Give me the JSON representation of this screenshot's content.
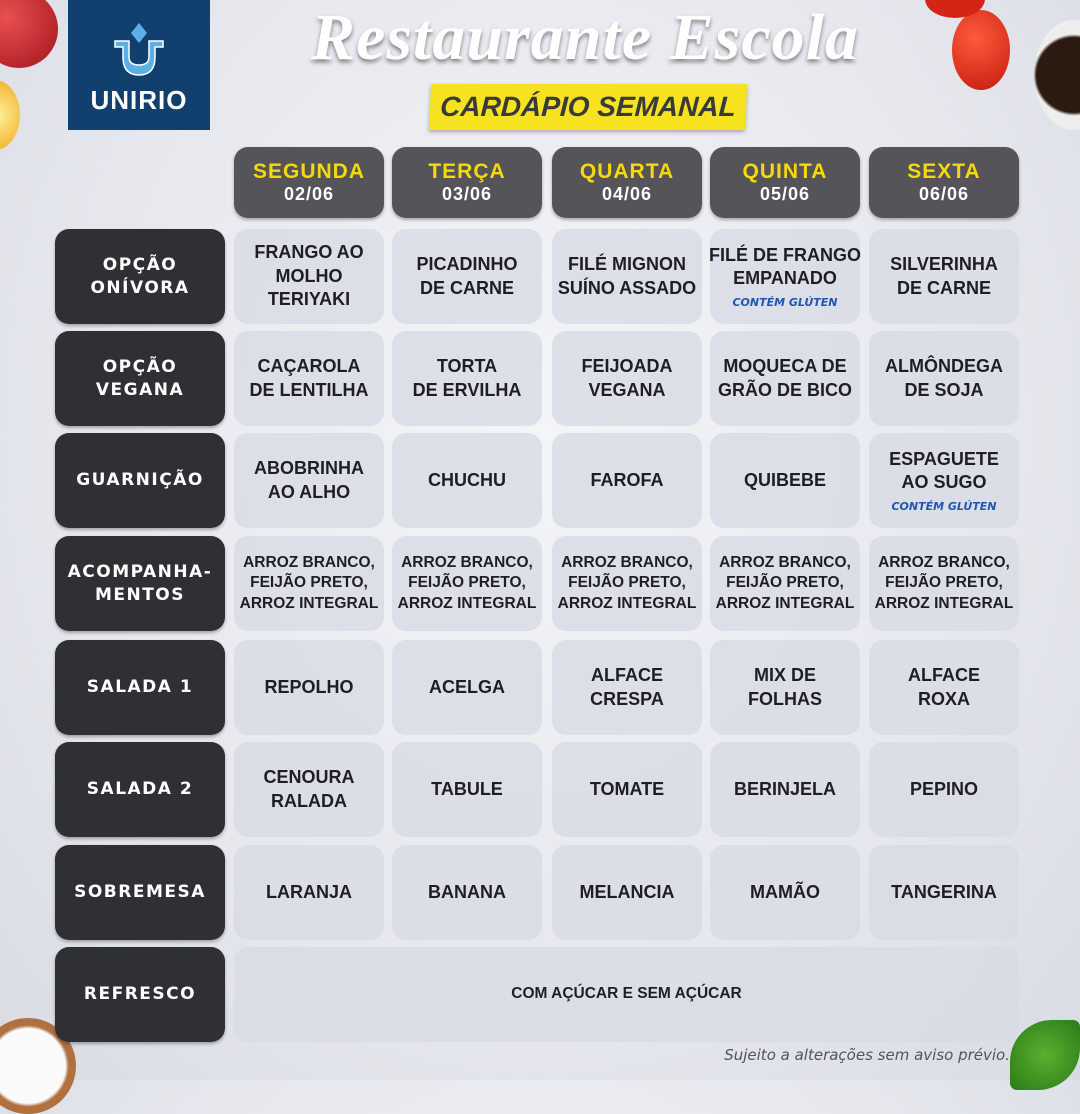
{
  "header": {
    "logo_text": "UNIRIO",
    "title": "Restaurante Escola",
    "subtitle": "CARDÁPIO SEMANAL"
  },
  "days": [
    {
      "name": "SEGUNDA",
      "date": "02/06"
    },
    {
      "name": "TERÇA",
      "date": "03/06"
    },
    {
      "name": "QUARTA",
      "date": "04/06"
    },
    {
      "name": "QUINTA",
      "date": "05/06"
    },
    {
      "name": "SEXTA",
      "date": "06/06"
    }
  ],
  "rows": [
    {
      "label": "OPÇÃO\nONÍVORA",
      "items": [
        {
          "text": "FRANGO AO\nMOLHO\nTERIYAKI"
        },
        {
          "text": "PICADINHO\nDE CARNE"
        },
        {
          "text": "FILÉ MIGNON\nSUÍNO ASSADO"
        },
        {
          "text": "FILÉ DE FRANGO\nEMPANADO",
          "note": "CONTÉM GLÚTEN"
        },
        {
          "text": "SILVERINHA\nDE CARNE"
        }
      ]
    },
    {
      "label": "OPÇÃO\nVEGANA",
      "items": [
        {
          "text": "CAÇAROLA\nDE LENTILHA"
        },
        {
          "text": "TORTA\nDE ERVILHA"
        },
        {
          "text": "FEIJOADA\nVEGANA"
        },
        {
          "text": "MOQUECA DE\nGRÃO DE BICO"
        },
        {
          "text": "ALMÔNDEGA\nDE SOJA"
        }
      ]
    },
    {
      "label": "GUARNIÇÃO",
      "items": [
        {
          "text": "ABOBRINHA\nAO ALHO"
        },
        {
          "text": "CHUCHU"
        },
        {
          "text": "FAROFA"
        },
        {
          "text": "QUIBEBE"
        },
        {
          "text": "ESPAGUETE\nAO SUGO",
          "note": "CONTÉM GLÚTEN"
        }
      ]
    },
    {
      "label": "ACOMPANHA-\nMENTOS",
      "small": true,
      "items": [
        {
          "text": "ARROZ BRANCO,\nFEIJÃO PRETO,\nARROZ INTEGRAL"
        },
        {
          "text": "ARROZ BRANCO,\nFEIJÃO PRETO,\nARROZ INTEGRAL"
        },
        {
          "text": "ARROZ BRANCO,\nFEIJÃO PRETO,\nARROZ INTEGRAL"
        },
        {
          "text": "ARROZ BRANCO,\nFEIJÃO PRETO,\nARROZ INTEGRAL"
        },
        {
          "text": "ARROZ BRANCO,\nFEIJÃO PRETO,\nARROZ INTEGRAL"
        }
      ]
    },
    {
      "label": "SALADA 1",
      "items": [
        {
          "text": "REPOLHO"
        },
        {
          "text": "ACELGA"
        },
        {
          "text": "ALFACE\nCRESPA"
        },
        {
          "text": "MIX DE\nFOLHAS"
        },
        {
          "text": "ALFACE\nROXA"
        }
      ]
    },
    {
      "label": "SALADA 2",
      "items": [
        {
          "text": "CENOURA\nRALADA"
        },
        {
          "text": "TABULE"
        },
        {
          "text": "TOMATE"
        },
        {
          "text": "BERINJELA"
        },
        {
          "text": "PEPINO"
        }
      ]
    },
    {
      "label": "SOBREMESA",
      "items": [
        {
          "text": "LARANJA"
        },
        {
          "text": "BANANA"
        },
        {
          "text": "MELANCIA"
        },
        {
          "text": "MAMÃO"
        },
        {
          "text": "TANGERINA"
        }
      ]
    },
    {
      "label": "REFRESCO",
      "span_text": "COM AÇÚCAR E SEM AÇÚCAR"
    }
  ],
  "footer": "Sujeito a alterações sem aviso prévio.",
  "colors": {
    "accent_yellow": "#f6e21e",
    "label_dark": "#2f3034",
    "day_header": "#545459",
    "note_blue": "#1f56b0",
    "logo_blue": "#12406e"
  }
}
